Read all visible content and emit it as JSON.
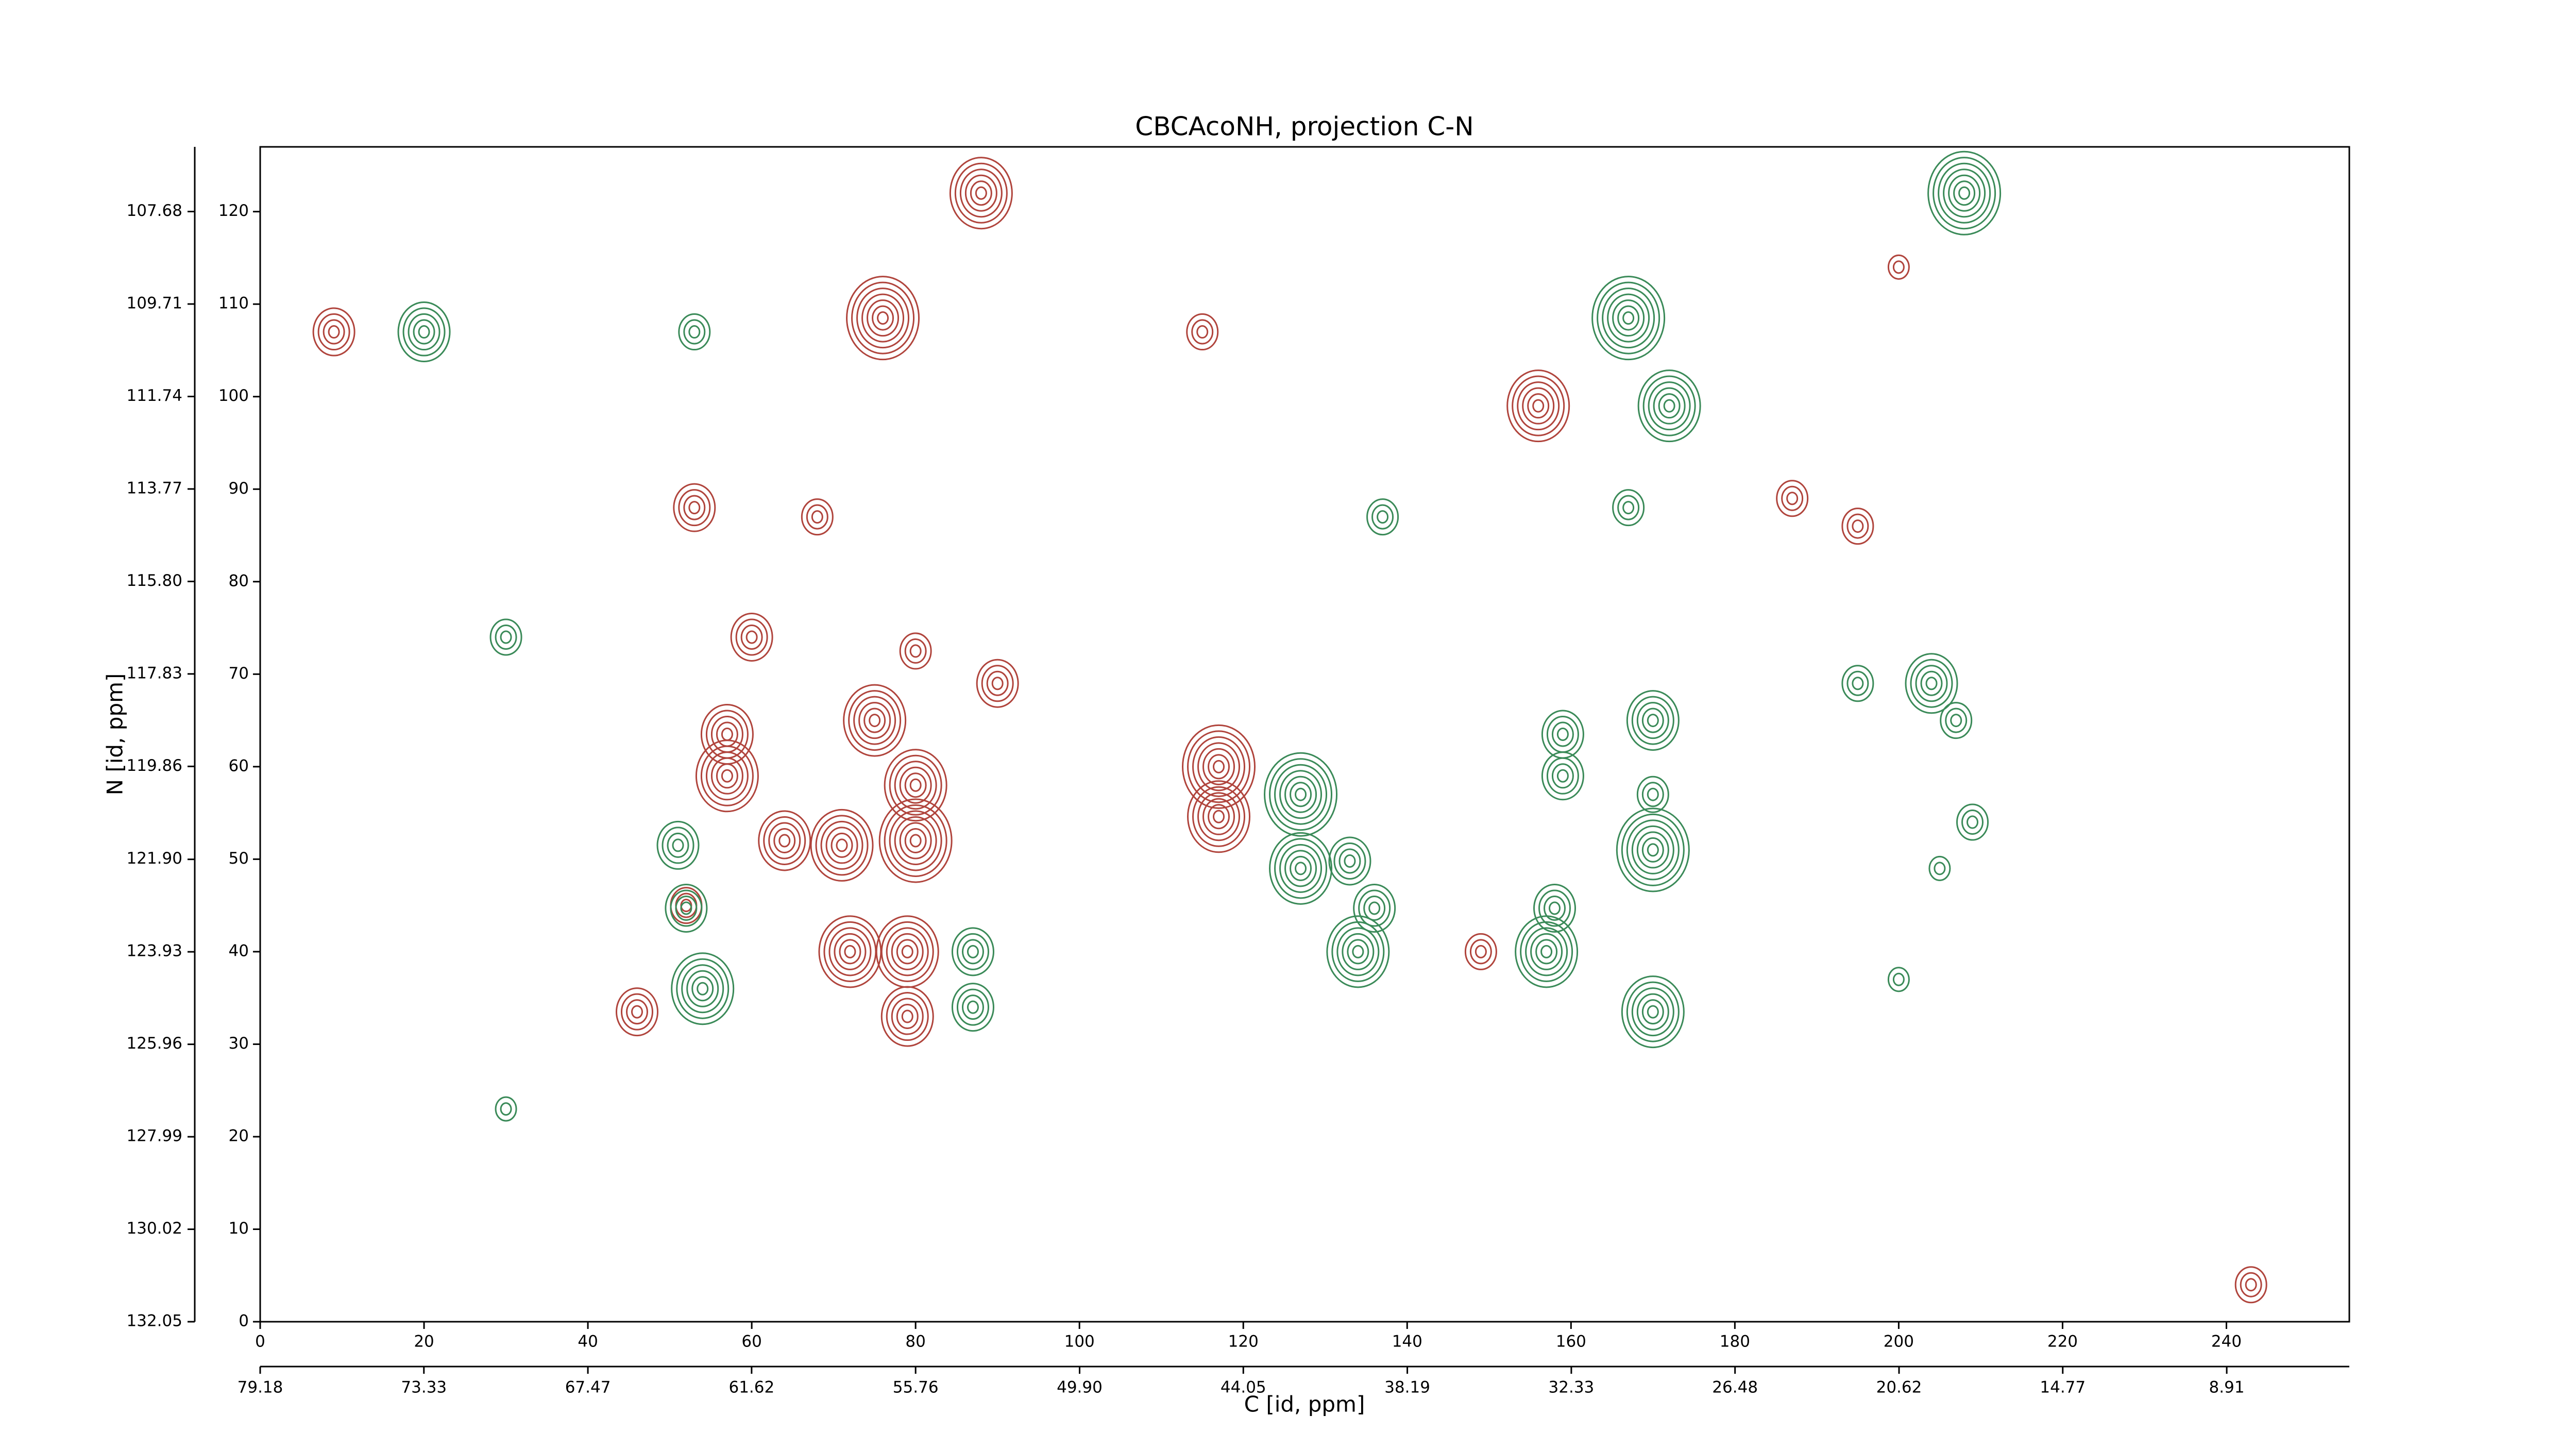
{
  "chart_data": {
    "type": "contour",
    "title": "CBCAcoNH, projection C-N",
    "xlabel": "C [id, ppm]",
    "ylabel": "N [id, ppm]",
    "xlim": [
      0,
      255
    ],
    "xticks": [
      0,
      20,
      40,
      60,
      80,
      100,
      120,
      140,
      160,
      180,
      200,
      220,
      240
    ],
    "ylim": [
      0,
      127
    ],
    "yticks": [
      0,
      10,
      20,
      30,
      40,
      50,
      60,
      70,
      80,
      90,
      100,
      110,
      120
    ],
    "x2lim": [
      79.18,
      4.53
    ],
    "x2ticks": [
      79.18,
      73.33,
      67.47,
      61.62,
      55.76,
      {
        "value": 49.9,
        "label": "49.90"
      },
      44.05,
      38.19,
      32.33,
      26.48,
      20.62,
      14.77,
      8.91
    ],
    "y2lim": [
      132.05,
      106.26
    ],
    "y2ticks": [
      132.05,
      130.02,
      127.99,
      125.96,
      123.93,
      {
        "value": 121.9,
        "label": "121.90"
      },
      119.86,
      117.83,
      {
        "value": 115.8,
        "label": "115.80"
      },
      113.77,
      111.74,
      109.71,
      107.68
    ],
    "series": [
      {
        "color": "#b0443c",
        "x": [
          88,
          9,
          76,
          53,
          60,
          90,
          75,
          57,
          57,
          117,
          117,
          80,
          80,
          71,
          64,
          72,
          79,
          79,
          46,
          156,
          115,
          200,
          187,
          195,
          149,
          68,
          80,
          243,
          52
        ],
        "y": [
          122,
          107,
          108.5,
          88,
          74,
          69,
          65,
          63.5,
          59,
          60,
          54.6,
          58,
          52,
          51.5,
          52,
          40,
          40,
          33,
          33.5,
          99,
          107,
          114,
          89,
          86,
          40,
          87,
          72.5,
          4,
          45
        ],
        "levels": [
          6,
          4,
          7,
          4,
          4,
          4,
          6,
          5,
          6,
          7,
          6,
          6,
          7,
          6,
          5,
          6,
          6,
          5,
          4,
          6,
          3,
          2,
          3,
          3,
          3,
          3,
          3,
          3,
          3
        ]
      },
      {
        "color": "#3a8a58",
        "x": [
          20,
          53,
          208,
          167,
          172,
          137,
          167,
          30,
          204,
          207,
          159,
          159,
          170,
          170,
          170,
          127,
          127,
          133,
          136,
          134,
          158,
          157,
          170,
          51,
          52,
          54,
          87,
          87,
          30,
          200,
          209,
          205,
          195
        ],
        "y": [
          107,
          107,
          122,
          108.5,
          99,
          87,
          88,
          74,
          69,
          65,
          63.5,
          59,
          65,
          57,
          51,
          57,
          49,
          49.8,
          44.7,
          40,
          44.7,
          40,
          33.5,
          51.5,
          44.7,
          36,
          40,
          34,
          23,
          37,
          54,
          49,
          69
        ],
        "levels": [
          5,
          3,
          7,
          7,
          6,
          3,
          3,
          3,
          5,
          3,
          4,
          4,
          5,
          3,
          7,
          7,
          6,
          4,
          4,
          6,
          4,
          6,
          6,
          4,
          4,
          6,
          4,
          4,
          2,
          2,
          3,
          2,
          3
        ]
      }
    ]
  }
}
